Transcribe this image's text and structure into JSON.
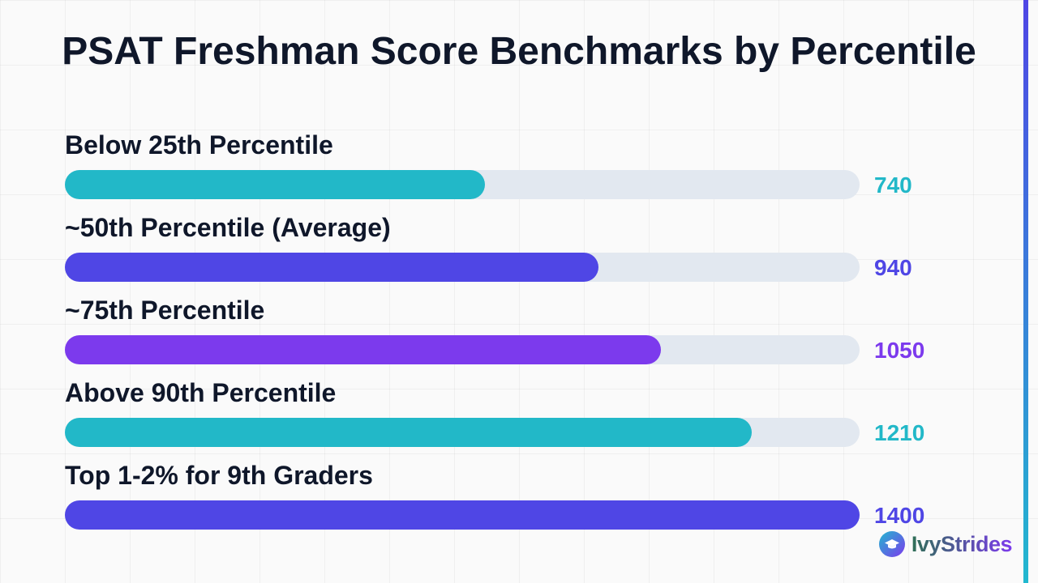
{
  "chart_data": {
    "type": "bar",
    "orientation": "horizontal",
    "title": "PSAT Freshman Score Benchmarks by Percentile",
    "categories": [
      "Below 25th Percentile",
      "~50th Percentile (Average)",
      "~75th Percentile",
      "Above 90th Percentile",
      "Top 1-2% for 9th Graders"
    ],
    "values": [
      740,
      940,
      1050,
      1210,
      1400
    ],
    "value_labels": [
      "740",
      "940",
      "1050",
      "1210",
      "1400"
    ],
    "colors": [
      "#22b8c8",
      "#4f46e5",
      "#7c3aed",
      "#22b8c8",
      "#4f46e5"
    ],
    "xlim": [
      0,
      1400
    ],
    "grid": true,
    "legend": "none"
  },
  "branding": {
    "name": "IvyStrides",
    "logo_icon": "graduation-cap-icon"
  },
  "colors": {
    "track": "#e2e8f0",
    "text": "#0f172a"
  }
}
